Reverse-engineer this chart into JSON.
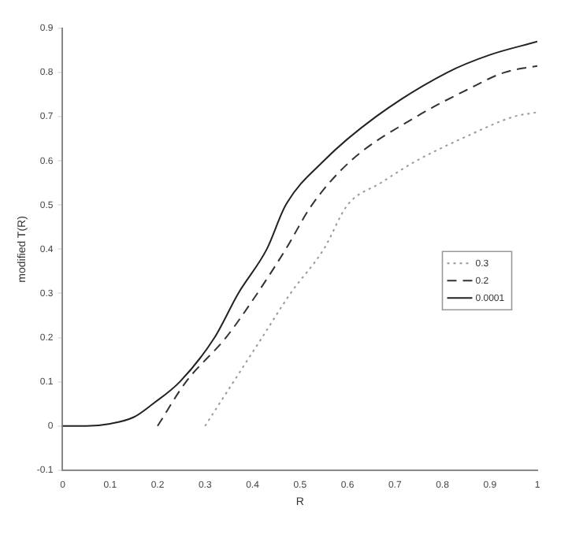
{
  "chart_data": {
    "type": "line",
    "xlabel": "R",
    "ylabel": "modified T(R)",
    "xlim": [
      0,
      1
    ],
    "xticks": [
      0,
      0.1,
      0.2,
      0.3,
      0.4,
      0.5,
      0.6,
      0.7,
      0.8,
      0.9,
      1
    ],
    "ylim": [
      -0.1,
      0.9
    ],
    "yticks": [
      -0.1,
      0,
      0.1,
      0.2,
      0.3,
      0.4,
      0.5,
      0.6,
      0.7,
      0.8,
      0.9
    ],
    "grid": false,
    "legend": "right",
    "marker": "none",
    "series": [
      {
        "name": "0.3",
        "color": "#999999",
        "line_style": "dotted",
        "x": [
          0.3,
          0.36,
          0.42,
          0.48,
          0.55,
          0.6,
          0.67,
          0.745,
          0.85,
          0.95,
          1
        ],
        "values": [
          0,
          0.1,
          0.2,
          0.3,
          0.4,
          0.5,
          0.55,
          0.6,
          0.655,
          0.7,
          0.71
        ]
      },
      {
        "name": "0.2",
        "color": "#333333",
        "line_style": "dashed",
        "x": [
          0.2,
          0.26,
          0.344,
          0.41,
          0.47,
          0.525,
          0.607,
          0.745,
          0.85,
          0.93,
          1
        ],
        "values": [
          0,
          0.1,
          0.2,
          0.3,
          0.4,
          0.5,
          0.6,
          0.7,
          0.76,
          0.8,
          0.815
        ]
      },
      {
        "name": "0.0001",
        "color": "#222222",
        "line_style": "solid",
        "x": [
          0,
          0.05,
          0.1,
          0.15,
          0.19,
          0.247,
          0.32,
          0.37,
          0.43,
          0.47,
          0.55,
          0.66,
          0.81,
          0.9,
          1
        ],
        "values": [
          0,
          0,
          0.005,
          0.02,
          0.05,
          0.1,
          0.2,
          0.3,
          0.4,
          0.5,
          0.6,
          0.7,
          0.8,
          0.84,
          0.87
        ]
      }
    ]
  }
}
